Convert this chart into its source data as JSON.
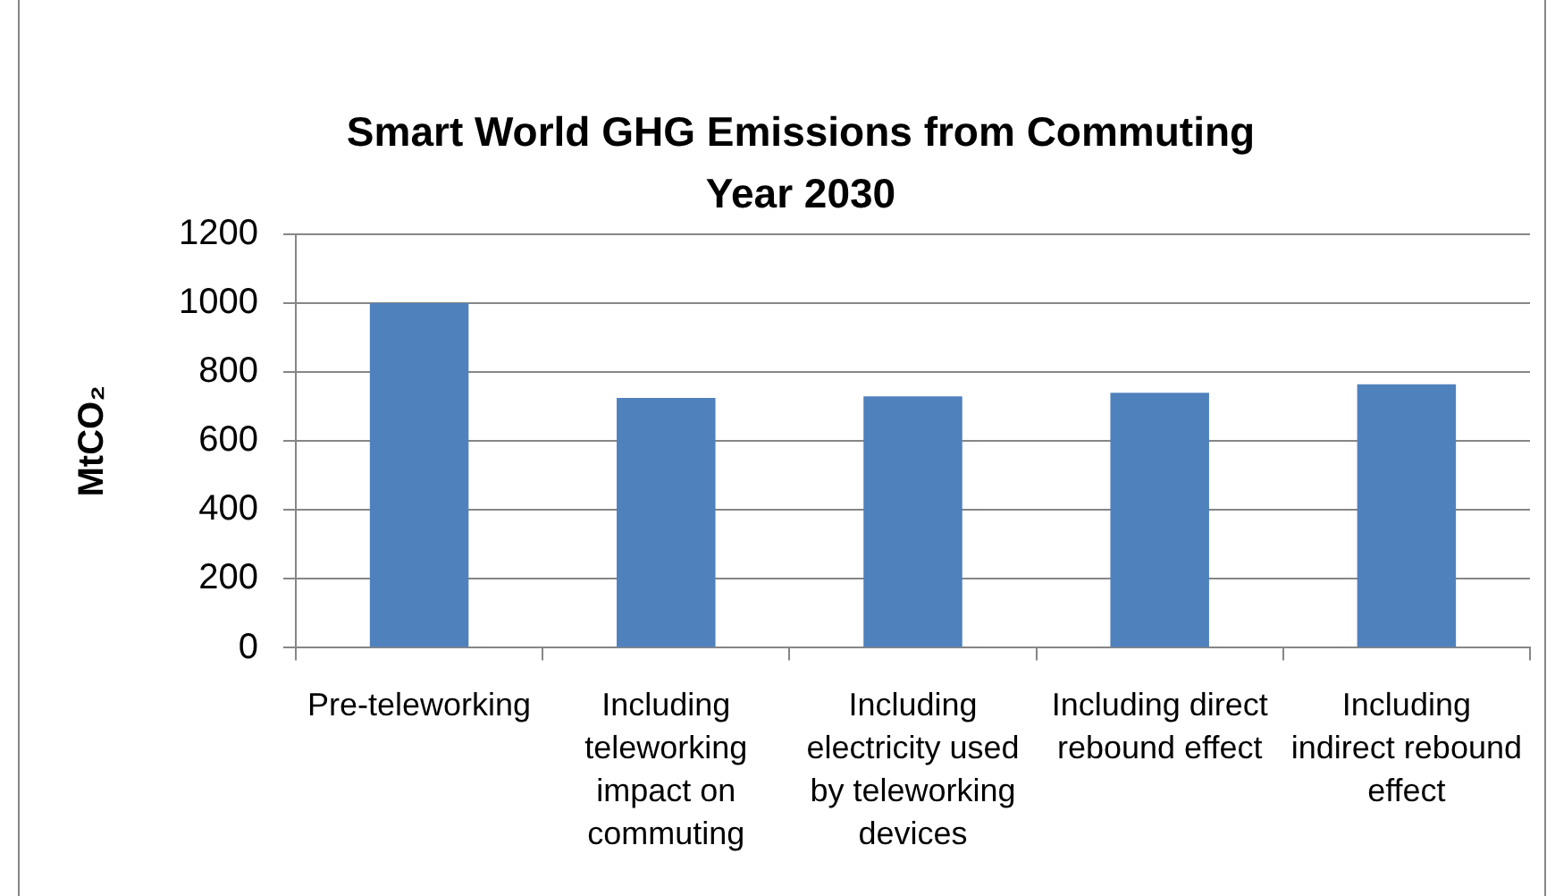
{
  "chart_data": {
    "type": "bar",
    "title": "Smart World GHG Emissions from Commuting\nYear 2030",
    "ylabel": "MtCO₂",
    "categories": [
      "Pre-teleworking",
      "Including teleworking impact on commuting",
      "Including electricity used by teleworking devices",
      "Including direct rebound effect",
      "Including indirect rebound effect"
    ],
    "values": [
      1000,
      725,
      730,
      740,
      765
    ],
    "color": "#4f81bd",
    "ylim": [
      0,
      1200
    ],
    "yticks": [
      0,
      200,
      400,
      600,
      800,
      1000,
      1200
    ],
    "grid": "y"
  }
}
